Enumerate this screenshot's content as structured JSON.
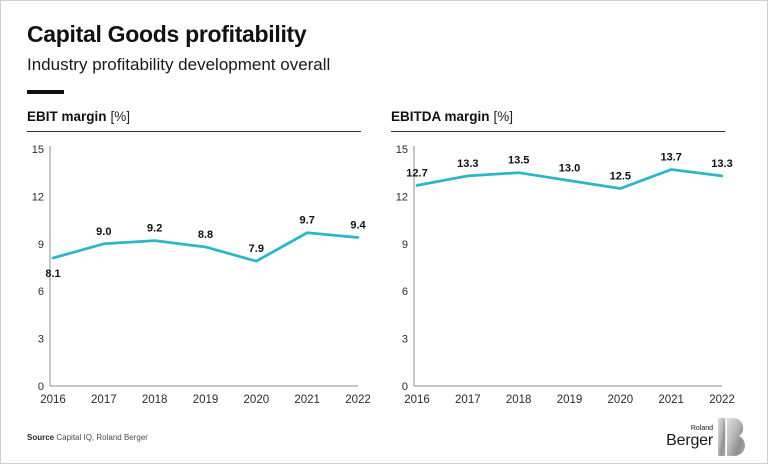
{
  "page": {
    "title": "Capital Goods profitability",
    "subtitle": "Industry profitability development overall"
  },
  "chart_data": [
    {
      "type": "line",
      "name": "EBIT margin",
      "unit": "[%]",
      "title": "EBIT margin [%]",
      "x": [
        "2016",
        "2017",
        "2018",
        "2019",
        "2020",
        "2021",
        "2022"
      ],
      "values": [
        8.1,
        9.0,
        9.2,
        8.8,
        7.9,
        9.7,
        9.4
      ],
      "labels": [
        "8.1",
        "9.0",
        "9.2",
        "8.8",
        "7.9",
        "9.7",
        "9.4"
      ],
      "ylim": [
        0,
        15
      ],
      "yticks": [
        0,
        3,
        6,
        9,
        12,
        15
      ],
      "grid": false,
      "legend": "none",
      "line_color": "#2ab7c9",
      "label_below_indices": [
        0
      ]
    },
    {
      "type": "line",
      "name": "EBITDA margin",
      "unit": "[%]",
      "title": "EBITDA margin [%]",
      "x": [
        "2016",
        "2017",
        "2018",
        "2019",
        "2020",
        "2021",
        "2022"
      ],
      "values": [
        12.7,
        13.3,
        13.5,
        13.0,
        12.5,
        13.7,
        13.3
      ],
      "labels": [
        "12.7",
        "13.3",
        "13.5",
        "13.0",
        "12.5",
        "13.7",
        "13.3"
      ],
      "ylim": [
        0,
        15
      ],
      "yticks": [
        0,
        3,
        6,
        9,
        12,
        15
      ],
      "grid": false,
      "legend": "none",
      "line_color": "#2ab7c9",
      "label_below_indices": []
    }
  ],
  "footer": {
    "source_label": "Source",
    "source_text": "Capital IQ, Roland Berger"
  },
  "logo": {
    "top": "Roland",
    "bottom": "Berger"
  },
  "colors": {
    "line": "#2ab7c9",
    "axis": "#8f8f8f",
    "text": "#111111"
  }
}
